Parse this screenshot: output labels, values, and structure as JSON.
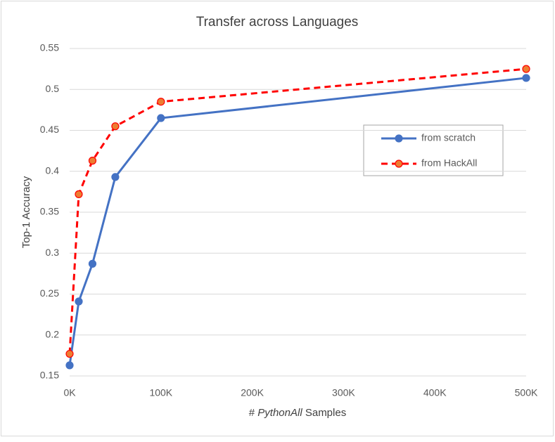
{
  "chart_data": {
    "type": "line",
    "title": "Transfer across Languages",
    "x_label": [
      "#",
      "PythonAll",
      "Samples"
    ],
    "y_label": "Top-1 Accuracy",
    "x": [
      0,
      10000,
      25000,
      50000,
      100000,
      500000
    ],
    "series": [
      {
        "name": "from scratch",
        "color": "#4472c4",
        "marker_fill": "#4472c4",
        "line_style": "solid",
        "values": [
          0.163,
          0.241,
          0.287,
          0.393,
          0.465,
          0.514
        ]
      },
      {
        "name": "from HackAll",
        "color": "#ff0000",
        "marker_fill": "#ed7d31",
        "line_style": "dashed",
        "values": [
          0.177,
          0.372,
          0.413,
          0.455,
          0.485,
          0.525
        ]
      }
    ],
    "xlim": [
      0,
      500000
    ],
    "xticks": [
      {
        "value": 0,
        "label": "0K"
      },
      {
        "value": 100000,
        "label": "100K"
      },
      {
        "value": 200000,
        "label": "200K"
      },
      {
        "value": 300000,
        "label": "300K"
      },
      {
        "value": 400000,
        "label": "400K"
      },
      {
        "value": 500000,
        "label": "500K"
      }
    ],
    "ylim": [
      0.15,
      0.55
    ],
    "yticks": [
      0.15,
      0.2,
      0.25,
      0.3,
      0.35,
      0.4,
      0.45,
      0.5,
      0.55
    ],
    "grid": true,
    "legend": "right"
  }
}
